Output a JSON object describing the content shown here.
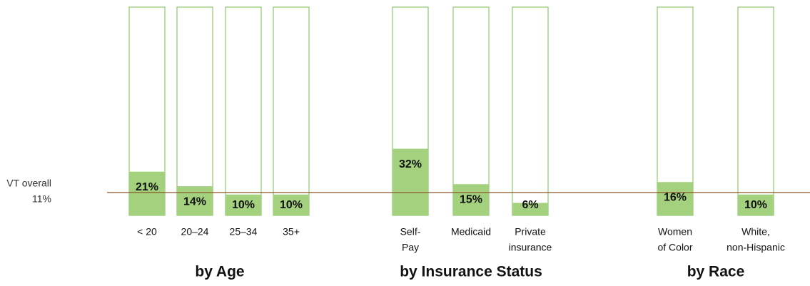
{
  "chart_data": {
    "type": "bar",
    "ylim": [
      0,
      100
    ],
    "color": "#a3d17e",
    "outline_color": "#8cc96a",
    "reference_line": {
      "value": 11,
      "label": "VT overall",
      "value_label": "11%",
      "color": "#8b5a2b"
    },
    "groups": [
      {
        "name": "by Age",
        "categories": [
          [
            "< 20"
          ],
          [
            "20–24"
          ],
          [
            "25–34"
          ],
          [
            "35+"
          ]
        ],
        "values": [
          21,
          14,
          10,
          10
        ],
        "value_labels": [
          "21%",
          "14%",
          "10%",
          "10%"
        ]
      },
      {
        "name": "by Insurance Status",
        "categories": [
          [
            "Self-",
            "Pay"
          ],
          [
            "Medicaid"
          ],
          [
            "Private",
            "insurance"
          ]
        ],
        "values": [
          32,
          15,
          6
        ],
        "value_labels": [
          "32%",
          "15%",
          "6%"
        ]
      },
      {
        "name": "by Race",
        "categories": [
          [
            "Women",
            "of Color"
          ],
          [
            "White,",
            "non-Hispanic"
          ]
        ],
        "values": [
          16,
          10
        ],
        "value_labels": [
          "16%",
          "10%"
        ]
      }
    ]
  }
}
